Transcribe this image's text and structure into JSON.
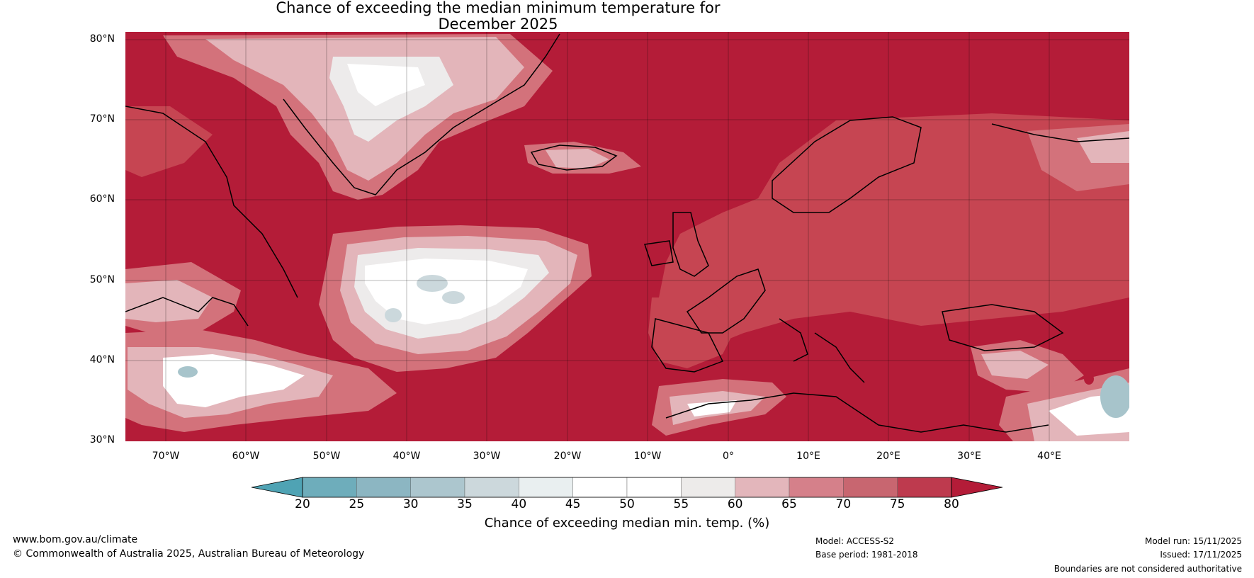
{
  "title": {
    "line1": "Chance of exceeding the median minimum temperature for",
    "line2": "December 2025"
  },
  "map": {
    "lat_labels": [
      "80°N",
      "70°N",
      "60°N",
      "50°N",
      "40°N",
      "30°N"
    ],
    "lon_labels": [
      "70°W",
      "60°W",
      "50°W",
      "40°W",
      "30°W",
      "20°W",
      "10°W",
      "0°",
      "10°E",
      "20°E",
      "30°E",
      "40°E"
    ],
    "extent": {
      "lon_min": -75,
      "lon_max": 50,
      "lat_min": 30,
      "lat_max": 81
    },
    "colors": {
      "dominant": "#B41C38",
      "land_band_75": "#C64552",
      "band_70": "#D3727B",
      "band_65": "#E3B5BA",
      "band_60": "#EDEBEB",
      "band_50": "#FFFFFF",
      "band_40": "#CBD8DC",
      "band_35": "#A7C4CB",
      "band_30": "#87B4BF"
    }
  },
  "colorbar": {
    "ticks": [
      "20",
      "25",
      "30",
      "35",
      "40",
      "45",
      "50",
      "55",
      "60",
      "65",
      "70",
      "75",
      "80"
    ],
    "colors": [
      "#4FA3B4",
      "#6EADBB",
      "#8CB6C2",
      "#ACC6CE",
      "#CCD8DC",
      "#E9EFF0",
      "#FFFFFF",
      "#FFFFFF",
      "#EDEBEA",
      "#E3B6BB",
      "#D5808A",
      "#C86670",
      "#BE3A4E",
      "#B41C38"
    ],
    "label": "Chance of exceeding median min. temp. (%)"
  },
  "footer": {
    "website": "www.bom.gov.au/climate",
    "copyright": "© Commonwealth of Australia 2025, Australian Bureau of Meteorology",
    "model": "Model: ACCESS-S2",
    "base_period": "Base period: 1981-2018",
    "model_run": "Model run: 15/11/2025",
    "issued": "Issued: 17/11/2025",
    "disclaimer": "Boundaries are not considered authoritative"
  }
}
